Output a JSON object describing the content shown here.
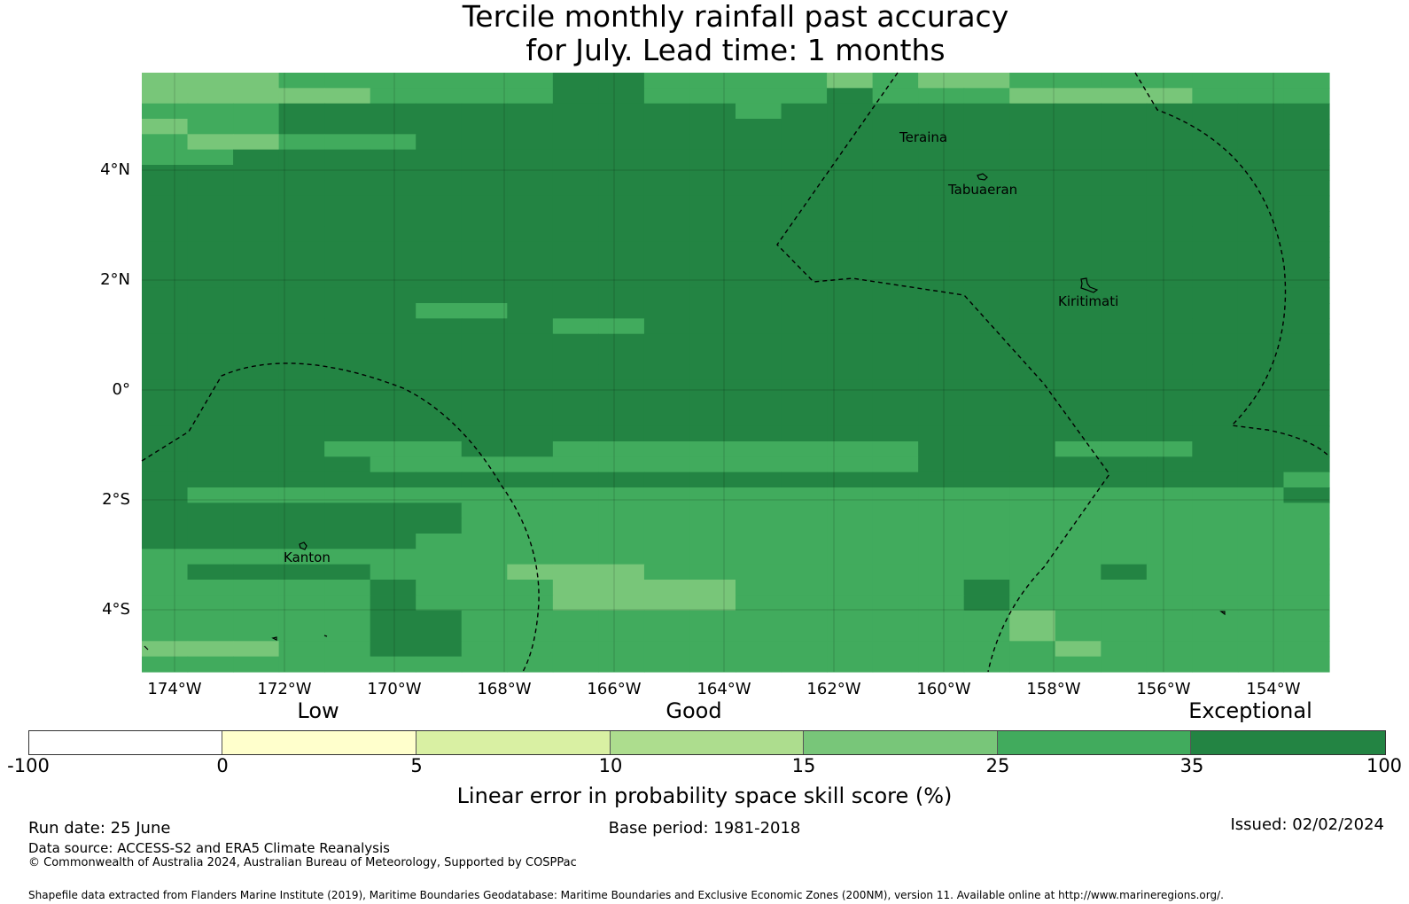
{
  "title": {
    "line1": "Tercile monthly rainfall past accuracy",
    "line2": "for July. Lead time: 1 months"
  },
  "map": {
    "lat_labels": [
      "4°N",
      "2°N",
      "0°",
      "2°S",
      "4°S"
    ],
    "lon_labels": [
      "174°W",
      "172°W",
      "170°W",
      "168°W",
      "166°W",
      "164°W",
      "162°W",
      "160°W",
      "158°W",
      "156°W",
      "154°W"
    ],
    "place_names": [
      "Teraina",
      "Tabuaeran",
      "Kiritimati",
      "Kanton"
    ],
    "grid_colors": [
      "#78c679",
      "#41ab5d",
      "#238443",
      "#addd8e"
    ],
    "skill_grid_rows": [
      "55533333311333343443333333",
      "45544333311333313334455333",
      "33322222222223222222222222",
      "43322222222222222222222222",
      "34433322222222222222222222",
      "33222222222222222222222222",
      "22222222222222222222222222",
      "22222222222222222222222222",
      "22222222222222222222222222",
      "22222222222222222222222222",
      "22222222222222222222222222",
      "22222222222222222222222222",
      "22222222222222222222222222",
      "22222222222222222222222222",
      "22222222222222222222222222",
      "22222233222222222222222222",
      "22222222233222222222222222",
      "22222222222222222222222222",
      "22222222222222222222222222",
      "22222222222222222222222222",
      "22222222222222222222222222",
      "22222222222222222222222222",
      "22222222222222222222222222",
      "22222222222222222222222222",
      "22223332233333333222333222",
      "22222333333333333222222222",
      "22222222222222222222222223",
      "23333333333333333333333332",
      "22222223333333333333333333",
      "22222223333333333333333333",
      "22222233333333333333333333",
      "33333333333333333333333333",
      "32222333444333333333323333",
      "33333133344443333323333333",
      "33333133344443333323333333",
      "33333113333333333334333333",
      "33333113333333333334333333",
      "44433113333333333333433333",
      "33333333333333333333333333"
    ]
  },
  "categories": {
    "low": "Low",
    "good": "Good",
    "exceptional": "Exceptional"
  },
  "colorbar": {
    "tick_labels": [
      "-100",
      "0",
      "5",
      "10",
      "15",
      "25",
      "35",
      "100"
    ],
    "colors": [
      "#ffffff",
      "#ffffcc",
      "#d9f0a3",
      "#addd8e",
      "#78c679",
      "#41ab5d",
      "#238443"
    ],
    "label": "Linear error in probability space skill score (%)"
  },
  "footer": {
    "run_date": "Run date: 25 June",
    "base_period": "Base period: 1981-2018",
    "issued": "Issued: 02/02/2024",
    "data_source": "Data source: ACCESS-S2 and ERA5 Climate Reanalysis",
    "copyright": "© Commonwealth of Australia 2024, Australian Bureau of Meteorology, Supported by COSPPac",
    "shapefile": "Shapefile data extracted from Flanders Marine Institute (2019), Maritime Boundaries Geodatabase: Maritime Boundaries and Exclusive Economic Zones (200NM), version 11. Available online at http://www.marineregions.org/."
  }
}
